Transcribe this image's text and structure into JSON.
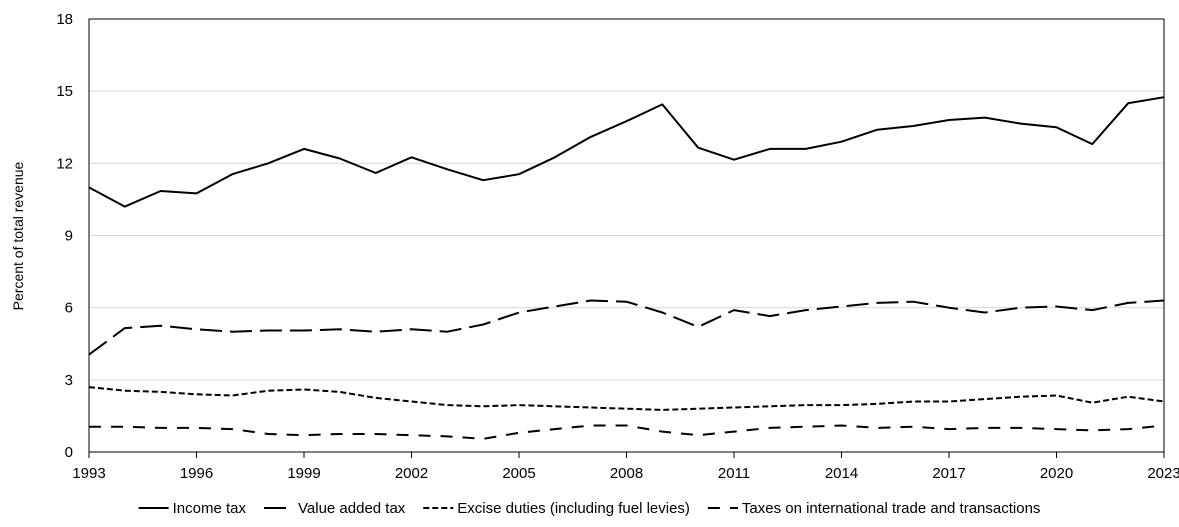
{
  "chart_data": {
    "type": "line",
    "title": "",
    "xlabel": "",
    "ylabel": "Percent of total revenue",
    "ylim": [
      0,
      18
    ],
    "yticks": [
      0,
      3,
      6,
      9,
      12,
      15,
      18
    ],
    "xlim": [
      1993,
      2023
    ],
    "xticks": [
      1993,
      1996,
      1999,
      2002,
      2005,
      2008,
      2011,
      2014,
      2017,
      2020,
      2023
    ],
    "grid": "horizontal",
    "legend_position": "bottom",
    "x": [
      1993,
      1994,
      1995,
      1996,
      1997,
      1998,
      1999,
      2000,
      2001,
      2002,
      2003,
      2004,
      2005,
      2006,
      2007,
      2008,
      2009,
      2010,
      2011,
      2012,
      2013,
      2014,
      2015,
      2016,
      2017,
      2018,
      2019,
      2020,
      2021,
      2022,
      2023
    ],
    "series": [
      {
        "name": "Income tax",
        "color": "#000000",
        "dash": "solid",
        "values": [
          11.0,
          10.2,
          10.85,
          10.75,
          11.55,
          12.0,
          12.6,
          12.2,
          11.6,
          12.25,
          11.75,
          11.3,
          11.55,
          12.25,
          13.1,
          13.75,
          14.45,
          12.65,
          12.15,
          12.6,
          12.6,
          12.9,
          13.4,
          13.55,
          13.8,
          13.9,
          13.65,
          13.5,
          12.8,
          14.5,
          14.75
        ]
      },
      {
        "name": "Value added tax",
        "color": "#000000",
        "dash": "long",
        "values": [
          4.05,
          5.15,
          5.25,
          5.1,
          5.0,
          5.05,
          5.05,
          5.1,
          5.0,
          5.1,
          5.0,
          5.3,
          5.8,
          6.05,
          6.3,
          6.25,
          5.8,
          5.2,
          5.9,
          5.65,
          5.9,
          6.05,
          6.2,
          6.25,
          6.0,
          5.8,
          6.0,
          6.05,
          5.9,
          6.2,
          6.3
        ]
      },
      {
        "name": "Excise duties (including fuel levies)",
        "color": "#000000",
        "dash": "short",
        "values": [
          2.7,
          2.55,
          2.5,
          2.4,
          2.35,
          2.55,
          2.6,
          2.5,
          2.25,
          2.1,
          1.95,
          1.9,
          1.95,
          1.9,
          1.85,
          1.8,
          1.75,
          1.8,
          1.85,
          1.9,
          1.95,
          1.95,
          2.0,
          2.1,
          2.1,
          2.2,
          2.3,
          2.35,
          2.05,
          2.3,
          2.1
        ]
      },
      {
        "name": "Taxes on international trade and transactions",
        "color": "#000000",
        "dash": "medium",
        "values": [
          1.05,
          1.05,
          1.0,
          1.0,
          0.95,
          0.75,
          0.7,
          0.75,
          0.75,
          0.7,
          0.65,
          0.55,
          0.8,
          0.95,
          1.1,
          1.1,
          0.85,
          0.7,
          0.85,
          1.0,
          1.05,
          1.1,
          1.0,
          1.05,
          0.95,
          1.0,
          1.0,
          0.95,
          0.9,
          0.95,
          1.1
        ]
      }
    ]
  }
}
